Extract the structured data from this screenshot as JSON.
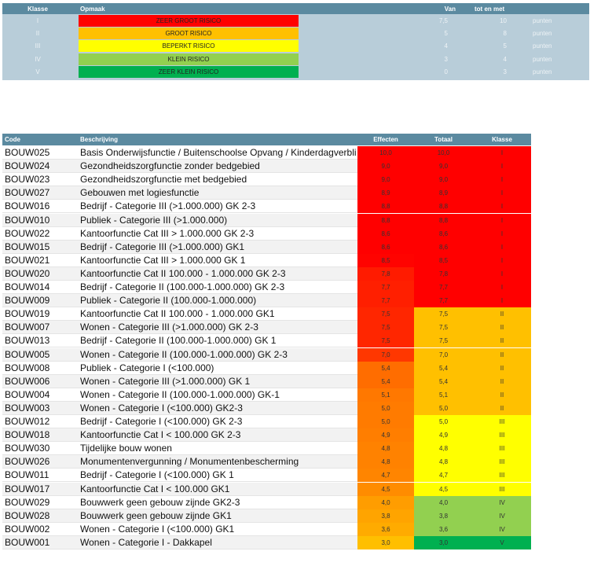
{
  "legend": {
    "header": [
      "Klasse",
      "Opmaak",
      "Van",
      "tot en met"
    ],
    "rows": [
      {
        "klasse": "I",
        "opmaak": "ZEER GROOT RISICO",
        "color": "#ff0000",
        "van": "7,5",
        "tot": "10",
        "unit": "punten"
      },
      {
        "klasse": "II",
        "opmaak": "GROOT RISICO",
        "color": "#ffc000",
        "van": "5",
        "tot": "8",
        "unit": "punten"
      },
      {
        "klasse": "III",
        "opmaak": "BEPERKT RISICO",
        "color": "#ffff00",
        "van": "4",
        "tot": "5",
        "unit": "punten"
      },
      {
        "klasse": "IV",
        "opmaak": "KLEIN RISICO",
        "color": "#92d050",
        "van": "3",
        "tot": "4",
        "unit": "punten"
      },
      {
        "klasse": "V",
        "opmaak": "ZEER KLEIN RISICO",
        "color": "#00b050",
        "van": "0",
        "tot": "3",
        "unit": "punten"
      }
    ]
  },
  "table": {
    "header": [
      "Code",
      "Beschrijving",
      "Effecten",
      "Totaal",
      "Klasse"
    ],
    "rows": [
      [
        "BOUW025",
        "Basis Onderwijsfunctie / Buitenschoolse Opvang / Kinderdagverbli",
        "10,0",
        "10,0",
        "I"
      ],
      [
        "BOUW024",
        "Gezondheidszorgfunctie zonder bedgebied",
        "9,0",
        "9,0",
        "I"
      ],
      [
        "BOUW023",
        "Gezondheidszorgfunctie met bedgebied",
        "9,0",
        "9,0",
        "I"
      ],
      [
        "BOUW027",
        "Gebouwen met logiesfunctie",
        "8,9",
        "8,9",
        "I"
      ],
      [
        "BOUW016",
        "Bedrijf - Categorie III (>1.000.000) GK 2-3",
        "8,8",
        "8,8",
        "I"
      ],
      [
        "BOUW010",
        "Publiek - Categorie III (>1.000.000)",
        "8,8",
        "8,8",
        "I"
      ],
      [
        "BOUW022",
        "Kantoorfunctie Cat III > 1.000.000 GK 2-3",
        "8,6",
        "8,6",
        "I"
      ],
      [
        "BOUW015",
        "Bedrijf - Categorie III (>1.000.000) GK1",
        "8,6",
        "8,6",
        "I"
      ],
      [
        "BOUW021",
        "Kantoorfunctie Cat III > 1.000.000 GK 1",
        "8,5",
        "8,5",
        "I"
      ],
      [
        "BOUW020",
        "Kantoorfunctie Cat II 100.000 - 1.000.000 GK 2-3",
        "7,8",
        "7,8",
        "I"
      ],
      [
        "BOUW014",
        "Bedrijf - Categorie II (100.000-1.000.000) GK 2-3",
        "7,7",
        "7,7",
        "I"
      ],
      [
        "BOUW009",
        "Publiek - Categorie II (100.000-1.000.000)",
        "7,7",
        "7,7",
        "I"
      ],
      [
        "BOUW019",
        "Kantoorfunctie Cat II 100.000 - 1.000.000 GK1",
        "7,5",
        "7,5",
        "II"
      ],
      [
        "BOUW007",
        "Wonen - Categorie III (>1.000.000) GK 2-3",
        "7,5",
        "7,5",
        "II"
      ],
      [
        "BOUW013",
        "Bedrijf - Categorie II (100.000-1.000.000) GK 1",
        "7,5",
        "7,5",
        "II"
      ],
      [
        "BOUW005",
        "Wonen - Categorie II (100.000-1.000.000) GK 2-3",
        "7,0",
        "7,0",
        "II"
      ],
      [
        "BOUW008",
        "Publiek - Categorie I (<100.000)",
        "5,4",
        "5,4",
        "II"
      ],
      [
        "BOUW006",
        "Wonen - Categorie III (>1.000.000) GK 1",
        "5,4",
        "5,4",
        "II"
      ],
      [
        "BOUW004",
        "Wonen - Categorie II (100.000-1.000.000) GK-1",
        "5,1",
        "5,1",
        "II"
      ],
      [
        "BOUW003",
        "Wonen - Categorie I (<100.000) GK2-3",
        "5,0",
        "5,0",
        "II"
      ],
      [
        "BOUW012",
        "Bedrijf - Categorie I (<100.000) GK 2-3",
        "5,0",
        "5,0",
        "III"
      ],
      [
        "BOUW018",
        "Kantoorfunctie Cat I < 100.000 GK 2-3",
        "4,9",
        "4,9",
        "III"
      ],
      [
        "BOUW030",
        "Tijdelijke bouw wonen",
        "4,8",
        "4,8",
        "III"
      ],
      [
        "BOUW026",
        "Monumentenvergunning / Monumentenbescherming",
        "4,8",
        "4,8",
        "III"
      ],
      [
        "BOUW011",
        "Bedrijf - Categorie I (<100.000) GK 1",
        "4,7",
        "4,7",
        "III"
      ],
      [
        "BOUW017",
        "Kantoorfunctie Cat I < 100.000 GK1",
        "4,5",
        "4,5",
        "III"
      ],
      [
        "BOUW029",
        "Bouwwerk geen gebouw zijnde GK2-3",
        "4,0",
        "4,0",
        "IV"
      ],
      [
        "BOUW028",
        "Bouwwerk geen gebouw zijnde GK1",
        "3,8",
        "3,8",
        "IV"
      ],
      [
        "BOUW002",
        "Wonen - Categorie I (<100.000) GK1",
        "3,6",
        "3,6",
        "IV"
      ],
      [
        "BOUW001",
        "Wonen - Categorie I - Dakkapel",
        "3,0",
        "3,0",
        "V"
      ]
    ]
  }
}
